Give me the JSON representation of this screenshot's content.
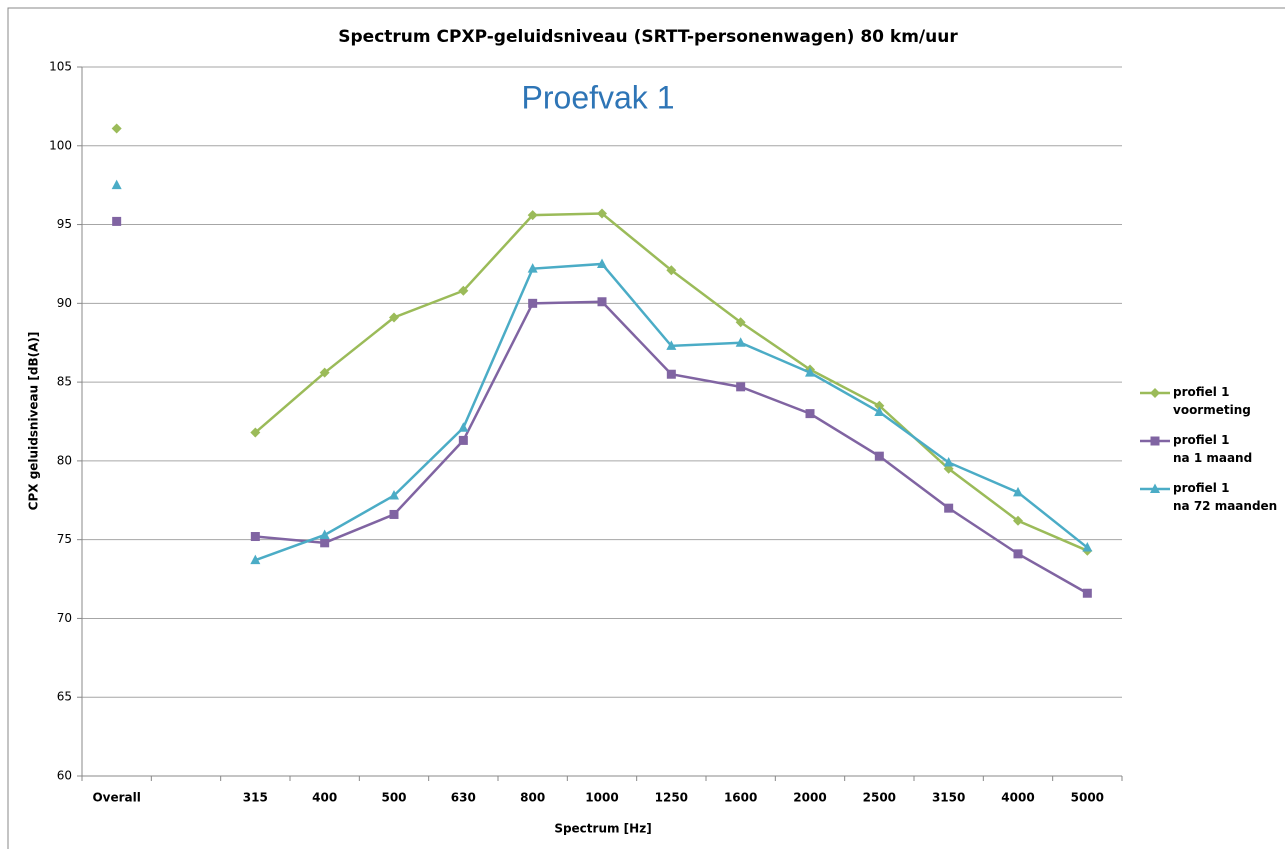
{
  "chart_data": {
    "type": "line",
    "title": "Spectrum CPXP-geluidsniveau (SRTT-personenwagen) 80 km/uur",
    "annotation": "Proefvak 1",
    "x_label": "Spectrum [Hz]",
    "y_label": "CPX geluidsniveau [dB(A)]",
    "categories": [
      "Overall",
      null,
      "315",
      "400",
      "500",
      "630",
      "800",
      "1000",
      "1250",
      "1600",
      "2000",
      "2500",
      "3150",
      "4000",
      "5000"
    ],
    "series": [
      {
        "name": "profiel 1\nvoormeting",
        "color": "#9bbb59",
        "marker": "diamond",
        "values": [
          101.1,
          null,
          81.8,
          85.6,
          89.1,
          90.8,
          95.6,
          95.7,
          92.1,
          88.8,
          85.8,
          83.5,
          79.5,
          76.2,
          74.3
        ]
      },
      {
        "name": "profiel 1\nna 1 maand",
        "color": "#8064a2",
        "marker": "square",
        "values": [
          95.2,
          null,
          75.2,
          74.8,
          76.6,
          81.3,
          90.0,
          90.1,
          85.5,
          84.7,
          83.0,
          80.3,
          77.0,
          74.1,
          71.6
        ]
      },
      {
        "name": "profiel 1\nna 72 maanden",
        "color": "#4bacc6",
        "marker": "triangle",
        "values": [
          97.5,
          null,
          73.7,
          75.3,
          77.8,
          82.1,
          92.2,
          92.5,
          87.3,
          87.5,
          85.6,
          83.1,
          79.9,
          78.0,
          74.5
        ]
      }
    ],
    "ylim": [
      60,
      105
    ],
    "yticks": [
      60,
      65,
      70,
      75,
      80,
      85,
      90,
      95,
      100,
      105
    ],
    "grid": true,
    "legend": "right"
  }
}
